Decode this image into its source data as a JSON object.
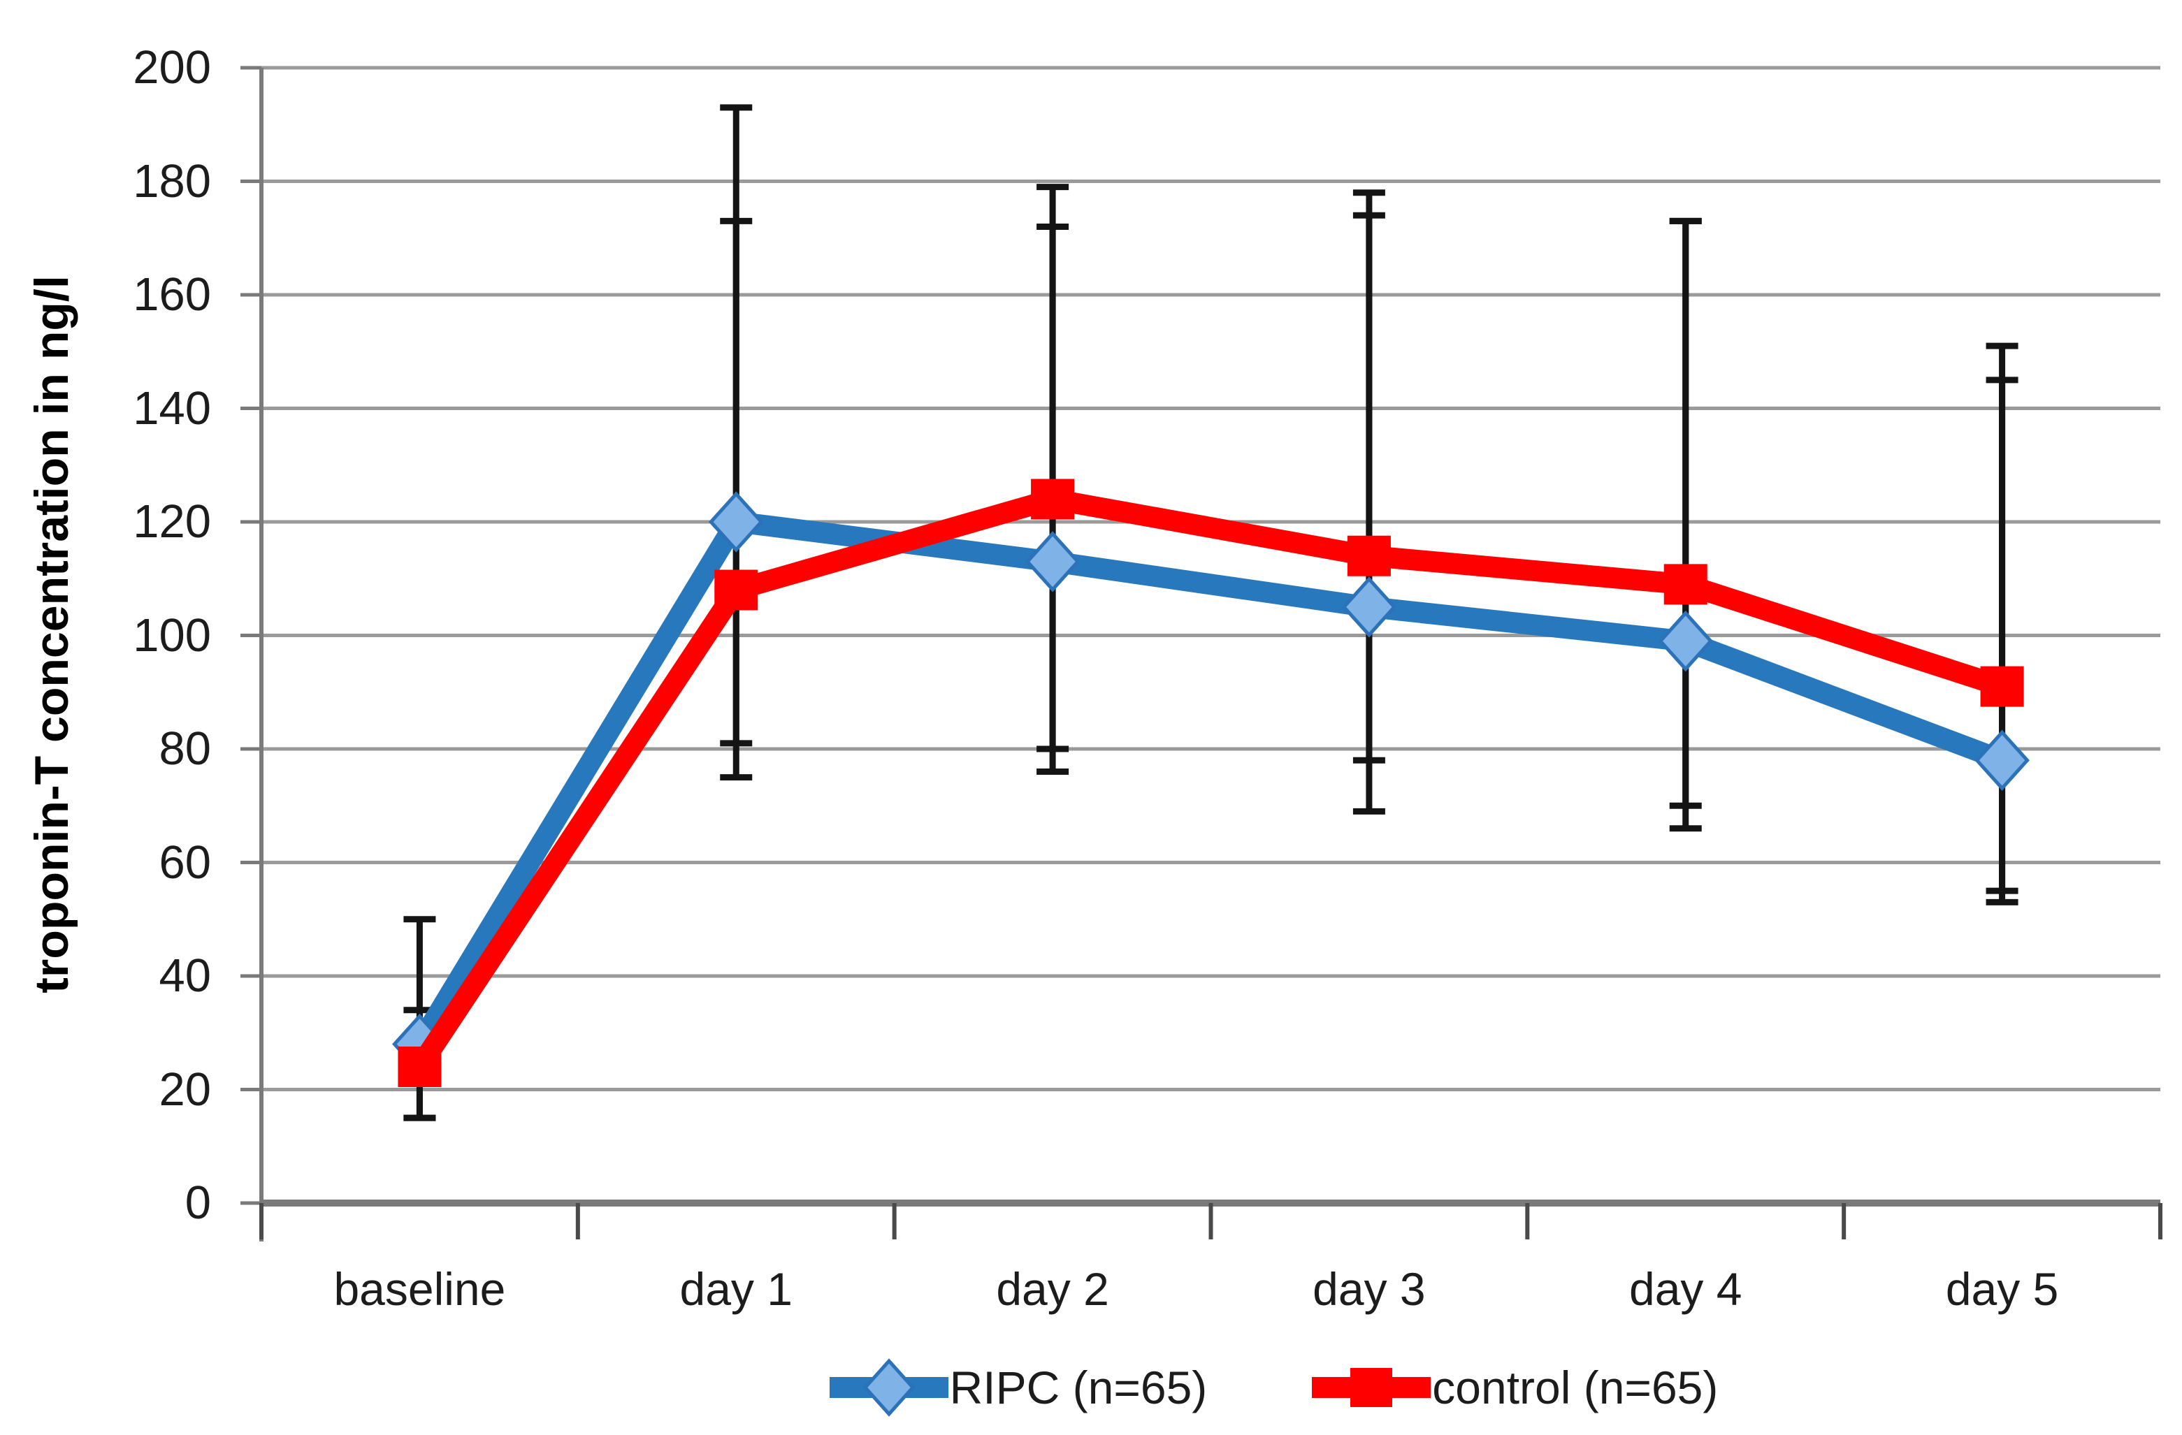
{
  "chart_data": {
    "type": "line",
    "title": "",
    "xlabel": "",
    "ylabel": "troponin-T concentration in ng/l",
    "ylim": [
      0,
      200
    ],
    "ytick_step": 20,
    "yticks": [
      0,
      20,
      40,
      60,
      80,
      100,
      120,
      140,
      160,
      180,
      200
    ],
    "grid": "horizontal-only",
    "legend_position": "bottom-center",
    "categories": [
      "baseline",
      "day 1",
      "day 2",
      "day 3",
      "day 4",
      "day 5"
    ],
    "series": [
      {
        "name": "RIPC (n=65)",
        "marker": "diamond",
        "color": "#2878BE",
        "marker_fill": "#7FB2E6",
        "marker_stroke": "#2B72B8",
        "values": [
          28,
          120,
          113,
          105,
          99,
          78
        ],
        "error_high": [
          50,
          193,
          179,
          174,
          173,
          145
        ],
        "error_low": [
          15,
          75,
          76,
          69,
          66,
          53
        ]
      },
      {
        "name": "control (n=65)",
        "marker": "square",
        "color": "#FF0000",
        "marker_fill": "#FF0000",
        "marker_stroke": "#E00000",
        "values": [
          24,
          108,
          124,
          114,
          109,
          91
        ],
        "error_high": [
          34,
          173,
          172,
          178,
          173,
          151
        ],
        "error_low": [
          15,
          81,
          80,
          78,
          70,
          55
        ]
      }
    ],
    "error_bar_color": "#141414",
    "axis_color": "#7a7a7a",
    "gridline_color": "#9a9a9a"
  }
}
